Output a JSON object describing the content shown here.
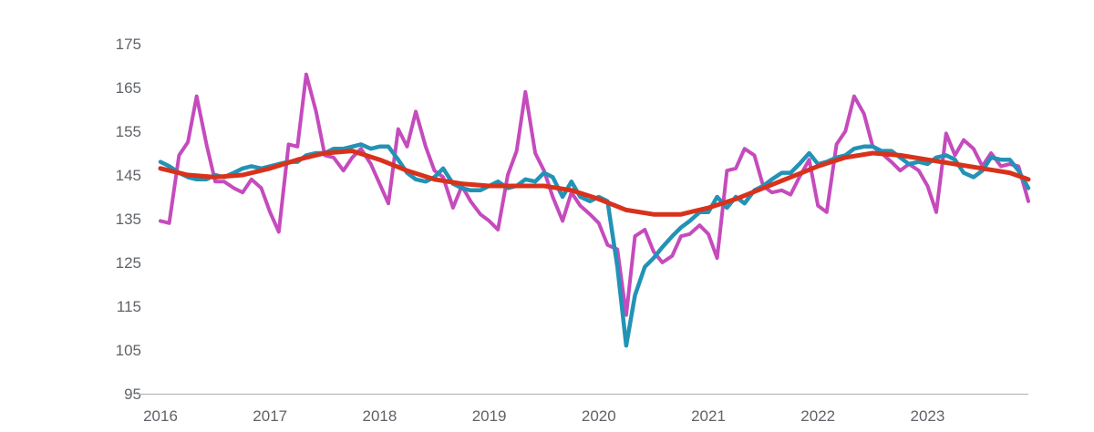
{
  "chart_data": {
    "type": "line",
    "title": "",
    "xlabel": "",
    "ylabel": "",
    "xlim": [
      2016.0,
      2023.92
    ],
    "ylim": [
      95,
      175
    ],
    "y_ticks": [
      95,
      105,
      115,
      125,
      135,
      145,
      155,
      165,
      175
    ],
    "x_ticks": [
      "2016",
      "2017",
      "2018",
      "2019",
      "2020",
      "2021",
      "2022",
      "2023"
    ],
    "grid": false,
    "legend": "none",
    "series": [
      {
        "color": "#c54bbd",
        "x": [
          2016.0,
          2016.08,
          2016.17,
          2016.25,
          2016.33,
          2016.42,
          2016.5,
          2016.58,
          2016.67,
          2016.75,
          2016.83,
          2016.92,
          2017.0,
          2017.08,
          2017.17,
          2017.25,
          2017.33,
          2017.42,
          2017.5,
          2017.58,
          2017.67,
          2017.75,
          2017.83,
          2017.92,
          2018.0,
          2018.08,
          2018.17,
          2018.25,
          2018.33,
          2018.42,
          2018.5,
          2018.58,
          2018.67,
          2018.75,
          2018.83,
          2018.92,
          2019.0,
          2019.08,
          2019.17,
          2019.25,
          2019.33,
          2019.42,
          2019.5,
          2019.58,
          2019.67,
          2019.75,
          2019.83,
          2019.92,
          2020.0,
          2020.08,
          2020.17,
          2020.25,
          2020.33,
          2020.42,
          2020.5,
          2020.58,
          2020.67,
          2020.75,
          2020.83,
          2020.92,
          2021.0,
          2021.08,
          2021.17,
          2021.25,
          2021.33,
          2021.42,
          2021.5,
          2021.58,
          2021.67,
          2021.75,
          2021.83,
          2021.92,
          2022.0,
          2022.08,
          2022.17,
          2022.25,
          2022.33,
          2022.42,
          2022.5,
          2022.58,
          2022.67,
          2022.75,
          2022.83,
          2022.92,
          2023.0,
          2023.08,
          2023.17,
          2023.25,
          2023.33,
          2023.42,
          2023.5,
          2023.58,
          2023.67,
          2023.75,
          2023.83,
          2023.92
        ],
        "values": [
          134.5,
          134.0,
          149.5,
          152.5,
          163.0,
          152.0,
          143.5,
          143.5,
          142.0,
          141.0,
          144.0,
          142.0,
          136.5,
          132.0,
          152.0,
          151.5,
          168.0,
          159.5,
          149.5,
          149.0,
          146.0,
          149.0,
          151.0,
          147.5,
          143.0,
          138.5,
          155.5,
          151.5,
          159.5,
          151.5,
          146.0,
          144.5,
          137.5,
          142.5,
          139.0,
          136.0,
          134.5,
          132.5,
          145.0,
          150.5,
          164.0,
          150.0,
          146.0,
          140.0,
          134.5,
          141.0,
          138.0,
          136.0,
          134.0,
          129.0,
          128.0,
          113.0,
          131.0,
          132.5,
          127.5,
          125.0,
          126.5,
          131.0,
          131.5,
          133.5,
          131.5,
          126.0,
          146.0,
          146.5,
          151.0,
          149.5,
          142.5,
          141.0,
          141.5,
          140.5,
          144.5,
          148.5,
          138.0,
          136.5,
          152.0,
          155.0,
          163.0,
          159.0,
          151.5,
          150.0,
          148.0,
          146.0,
          147.5,
          146.0,
          142.5,
          136.5,
          154.5,
          149.5,
          153.0,
          151.0,
          147.0,
          150.0,
          147.0,
          147.5,
          147.0,
          139.0
        ]
      },
      {
        "color": "#2293b6",
        "x": [
          2016.0,
          2016.08,
          2016.17,
          2016.25,
          2016.33,
          2016.42,
          2016.5,
          2016.58,
          2016.67,
          2016.75,
          2016.83,
          2016.92,
          2017.0,
          2017.08,
          2017.17,
          2017.25,
          2017.33,
          2017.42,
          2017.5,
          2017.58,
          2017.67,
          2017.75,
          2017.83,
          2017.92,
          2018.0,
          2018.08,
          2018.17,
          2018.25,
          2018.33,
          2018.42,
          2018.5,
          2018.58,
          2018.67,
          2018.75,
          2018.83,
          2018.92,
          2019.0,
          2019.08,
          2019.17,
          2019.25,
          2019.33,
          2019.42,
          2019.5,
          2019.58,
          2019.67,
          2019.75,
          2019.83,
          2019.92,
          2020.0,
          2020.08,
          2020.17,
          2020.25,
          2020.33,
          2020.42,
          2020.5,
          2020.58,
          2020.67,
          2020.75,
          2020.83,
          2020.92,
          2021.0,
          2021.08,
          2021.17,
          2021.25,
          2021.33,
          2021.42,
          2021.5,
          2021.58,
          2021.67,
          2021.75,
          2021.83,
          2021.92,
          2022.0,
          2022.08,
          2022.17,
          2022.25,
          2022.33,
          2022.42,
          2022.5,
          2022.58,
          2022.67,
          2022.75,
          2022.83,
          2022.92,
          2023.0,
          2023.08,
          2023.17,
          2023.25,
          2023.33,
          2023.42,
          2023.5,
          2023.58,
          2023.67,
          2023.75,
          2023.83,
          2023.92
        ],
        "values": [
          148.0,
          147.0,
          145.5,
          144.5,
          144.0,
          144.0,
          145.0,
          144.5,
          145.5,
          146.5,
          147.0,
          146.5,
          147.0,
          147.5,
          148.0,
          148.0,
          149.5,
          150.0,
          150.0,
          151.0,
          151.0,
          151.5,
          152.0,
          151.0,
          151.5,
          151.5,
          148.5,
          145.5,
          144.0,
          143.5,
          144.5,
          146.5,
          143.0,
          142.0,
          141.5,
          141.5,
          142.5,
          143.5,
          142.0,
          142.5,
          144.0,
          143.5,
          145.5,
          144.5,
          140.0,
          143.5,
          140.0,
          139.0,
          140.0,
          139.0,
          124.0,
          106.0,
          117.5,
          124.0,
          126.0,
          128.5,
          131.0,
          133.0,
          134.5,
          136.5,
          136.5,
          140.0,
          137.5,
          140.0,
          138.5,
          141.5,
          142.5,
          144.0,
          145.5,
          145.5,
          147.5,
          150.0,
          147.5,
          148.0,
          149.0,
          149.5,
          151.0,
          151.5,
          151.5,
          150.5,
          150.5,
          149.0,
          147.5,
          148.0,
          147.5,
          149.0,
          149.5,
          148.5,
          145.5,
          144.5,
          146.0,
          149.0,
          148.5,
          148.5,
          146.0,
          142.0
        ]
      },
      {
        "color": "#d8321c",
        "x": [
          2016.0,
          2016.25,
          2016.5,
          2016.75,
          2017.0,
          2017.25,
          2017.5,
          2017.75,
          2018.0,
          2018.25,
          2018.5,
          2018.75,
          2019.0,
          2019.25,
          2019.5,
          2019.75,
          2020.0,
          2020.25,
          2020.5,
          2020.75,
          2021.0,
          2021.25,
          2021.5,
          2021.75,
          2022.0,
          2022.25,
          2022.5,
          2022.75,
          2023.0,
          2023.25,
          2023.5,
          2023.75,
          2023.92
        ],
        "values": [
          146.5,
          145.0,
          144.5,
          145.0,
          146.5,
          148.5,
          150.0,
          150.5,
          148.5,
          146.0,
          144.0,
          143.0,
          142.5,
          142.5,
          142.5,
          141.5,
          139.5,
          137.0,
          136.0,
          136.0,
          137.5,
          139.5,
          142.0,
          144.5,
          147.0,
          149.0,
          150.0,
          149.5,
          148.5,
          147.5,
          146.5,
          145.5,
          144.0
        ]
      }
    ]
  }
}
